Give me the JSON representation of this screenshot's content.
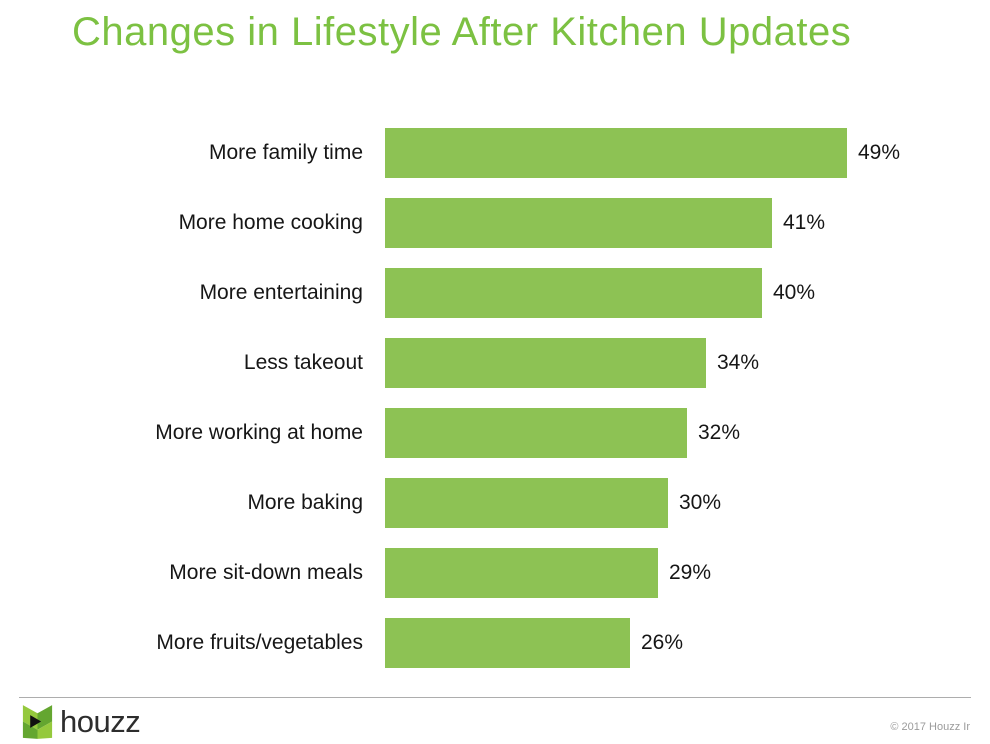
{
  "page": {
    "title": "Changes in Lifestyle After Kitchen Updates"
  },
  "chart_data": {
    "type": "bar",
    "orientation": "horizontal",
    "title": "Changes in Lifestyle After Kitchen Updates",
    "categories": [
      "More family time",
      "More home cooking",
      "More entertaining",
      "Less takeout",
      "More working at home",
      "More baking",
      "More sit-down meals",
      "More fruits/vegetables"
    ],
    "values": [
      49,
      41,
      40,
      34,
      32,
      30,
      29,
      26
    ],
    "value_suffix": "%",
    "xlim": [
      0,
      49
    ],
    "grid": false,
    "legend": false,
    "bar_color": "#8dc254",
    "value_label_position": "right-of-bar",
    "category_label_position": "left-of-bar"
  },
  "footer": {
    "brand": "houzz",
    "logo_icon": "houzz-logo-icon",
    "copyright": "© 2017 Houzz Ir"
  },
  "colors": {
    "title_green": "#7cc142",
    "bar_green": "#8dc254",
    "label_text": "#161616",
    "copyright_gray": "#9b9b9b",
    "divider_gray": "#adadad",
    "logo_green_light": "#95c93d",
    "logo_green_dark": "#64a630",
    "logo_black": "#111111"
  }
}
